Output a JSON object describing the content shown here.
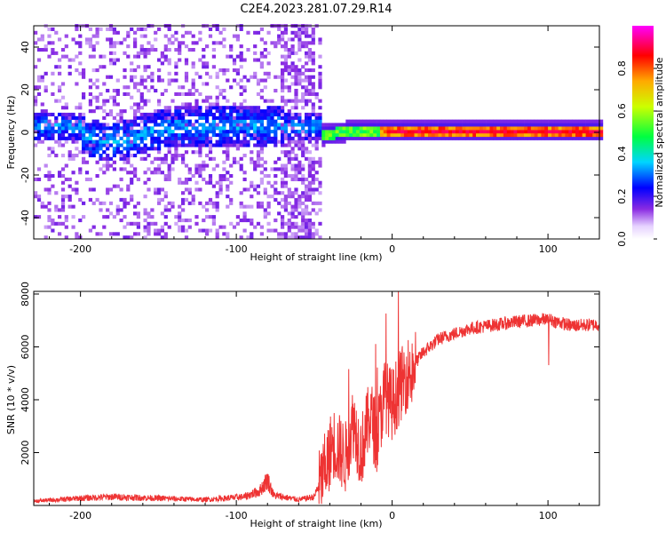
{
  "title": "C2E4.2023.281.07.29.R14",
  "chart_data": [
    {
      "type": "heatmap",
      "xlabel": "Height of straight line (km)",
      "ylabel": "Frequency (Hz)",
      "xlim": [
        -230,
        133
      ],
      "ylim": [
        -50,
        50
      ],
      "xticks": [
        -200,
        -100,
        0,
        100
      ],
      "yticks": [
        -40,
        -20,
        0,
        20,
        40
      ],
      "colorbar": {
        "label": "Normalized spectral amplitude",
        "range": [
          0,
          1
        ],
        "ticks": [
          0.0,
          0.2,
          0.4,
          0.6,
          0.8
        ],
        "colormap": [
          "#ffffff",
          "#8a2be2",
          "#0000ff",
          "#00e5ff",
          "#00ff00",
          "#ffff00",
          "#ff0000",
          "#ff00ff"
        ]
      },
      "noise_region_x": [
        -230,
        -47
      ],
      "signal_line_x": [
        -47,
        133
      ]
    },
    {
      "type": "line",
      "xlabel": "Height of straight line (km)",
      "ylabel": "SNR (10 * v/v)",
      "xlim": [
        -230,
        133
      ],
      "ylim": [
        0,
        8100
      ],
      "xticks": [
        -200,
        -100,
        0,
        100
      ],
      "yticks": [
        2000,
        4000,
        6000,
        8000
      ],
      "line_color": "#ee3333",
      "envelope": [
        {
          "x": -230,
          "y": 150
        },
        {
          "x": -200,
          "y": 250
        },
        {
          "x": -180,
          "y": 300
        },
        {
          "x": -150,
          "y": 250
        },
        {
          "x": -120,
          "y": 200
        },
        {
          "x": -95,
          "y": 300
        },
        {
          "x": -85,
          "y": 500
        },
        {
          "x": -80,
          "y": 900
        },
        {
          "x": -76,
          "y": 350
        },
        {
          "x": -60,
          "y": 200
        },
        {
          "x": -50,
          "y": 300
        },
        {
          "x": -45,
          "y": 1000
        },
        {
          "x": -38,
          "y": 2400
        },
        {
          "x": -30,
          "y": 1800
        },
        {
          "x": -25,
          "y": 3200
        },
        {
          "x": -20,
          "y": 2000
        },
        {
          "x": -14,
          "y": 3500
        },
        {
          "x": -10,
          "y": 2500
        },
        {
          "x": -5,
          "y": 4200
        },
        {
          "x": 0,
          "y": 3800
        },
        {
          "x": 5,
          "y": 4500
        },
        {
          "x": 10,
          "y": 5000
        },
        {
          "x": 20,
          "y": 5800
        },
        {
          "x": 30,
          "y": 6300
        },
        {
          "x": 50,
          "y": 6700
        },
        {
          "x": 80,
          "y": 6950
        },
        {
          "x": 100,
          "y": 7050
        },
        {
          "x": 115,
          "y": 6800
        },
        {
          "x": 133,
          "y": 6850
        }
      ]
    }
  ]
}
